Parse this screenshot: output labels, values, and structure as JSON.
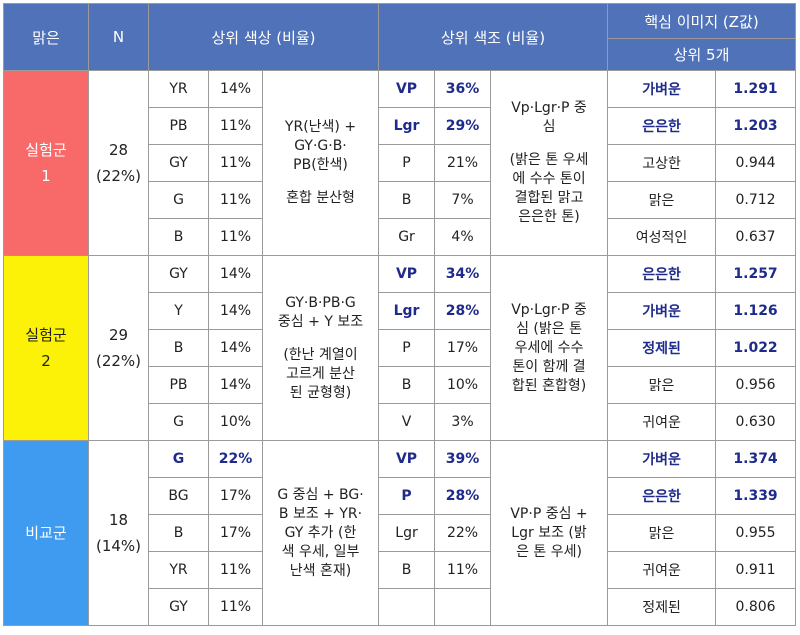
{
  "header": {
    "group": "맑은",
    "n": "N",
    "top_colors": "상위 색상 (비율)",
    "top_tones": "상위 색조 (비율)",
    "key_image": "핵심 이미지 (Z값)",
    "key_image_sub": "상위 5개"
  },
  "groups": [
    {
      "name_line1": "실험군",
      "name_line2": "1",
      "n": "28",
      "pct": "(22%)",
      "color_desc_a": "YR(난색) +\nGY·G·B·\nPB(한색)",
      "color_desc_b": "혼합 분산형",
      "tone_desc_a": "Vp·Lgr·P 중\n심",
      "tone_desc_b": "(밝은 톤 우세\n에 수수 톤이\n결합된 맑고\n은은한 톤)",
      "rows": [
        {
          "color": "YR",
          "color_pct": "14%",
          "tone": "VP",
          "tone_pct": "36%",
          "image": "가벼운",
          "z": "1.291"
        },
        {
          "color": "PB",
          "color_pct": "11%",
          "tone": "Lgr",
          "tone_pct": "29%",
          "image": "은은한",
          "z": "1.203"
        },
        {
          "color": "GY",
          "color_pct": "11%",
          "tone": "P",
          "tone_pct": "21%",
          "image": "고상한",
          "z": "0.944"
        },
        {
          "color": "G",
          "color_pct": "11%",
          "tone": "B",
          "tone_pct": "7%",
          "image": "맑은",
          "z": "0.712"
        },
        {
          "color": "B",
          "color_pct": "11%",
          "tone": "Gr",
          "tone_pct": "4%",
          "image": "여성적인",
          "z": "0.637"
        }
      ]
    },
    {
      "name_line1": "실험군",
      "name_line2": "2",
      "n": "29",
      "pct": "(22%)",
      "color_desc_a": "GY·B·PB·G\n중심 + Y 보조",
      "color_desc_b": "(한난 계열이\n고르게 분산\n된 균형형)",
      "tone_desc": "Vp·Lgr·P 중\n심 (밝은 톤\n우세에 수수\n톤이 함께 결\n합된 혼합형)",
      "rows": [
        {
          "color": "GY",
          "color_pct": "14%",
          "tone": "VP",
          "tone_pct": "34%",
          "image": "은은한",
          "z": "1.257"
        },
        {
          "color": "Y",
          "color_pct": "14%",
          "tone": "Lgr",
          "tone_pct": "28%",
          "image": "가벼운",
          "z": "1.126"
        },
        {
          "color": "B",
          "color_pct": "14%",
          "tone": "P",
          "tone_pct": "17%",
          "image": "정제된",
          "z": "1.022"
        },
        {
          "color": "PB",
          "color_pct": "14%",
          "tone": "B",
          "tone_pct": "10%",
          "image": "맑은",
          "z": "0.956"
        },
        {
          "color": "G",
          "color_pct": "10%",
          "tone": "V",
          "tone_pct": "3%",
          "image": "귀여운",
          "z": "0.630"
        }
      ]
    },
    {
      "name_line1": "비교군",
      "n": "18",
      "pct": "(14%)",
      "color_desc": "G 중심 + BG·\nB 보조 + YR·\nGY 추가 (한\n색 우세, 일부\n난색 혼재)",
      "tone_desc": "VP·P 중심 +\nLgr 보조 (밝\n은 톤 우세)",
      "rows": [
        {
          "color": "G",
          "color_pct": "22%",
          "tone": "VP",
          "tone_pct": "39%",
          "image": "가벼운",
          "z": "1.374"
        },
        {
          "color": "BG",
          "color_pct": "17%",
          "tone": "P",
          "tone_pct": "28%",
          "image": "은은한",
          "z": "1.339"
        },
        {
          "color": "B",
          "color_pct": "17%",
          "tone": "Lgr",
          "tone_pct": "22%",
          "image": "맑은",
          "z": "0.955"
        },
        {
          "color": "YR",
          "color_pct": "11%",
          "tone": "B",
          "tone_pct": "11%",
          "image": "귀여운",
          "z": "0.911"
        },
        {
          "color": "GY",
          "color_pct": "11%",
          "tone": "",
          "tone_pct": "",
          "image": "정제된",
          "z": "0.806"
        }
      ]
    }
  ],
  "colors": {
    "header_bg": "#4f72b8",
    "group1_bg": "#f86a6a",
    "group2_bg": "#fbf207",
    "group3_bg": "#3f9bf0",
    "emphasis_text": "#1f2b8c"
  }
}
